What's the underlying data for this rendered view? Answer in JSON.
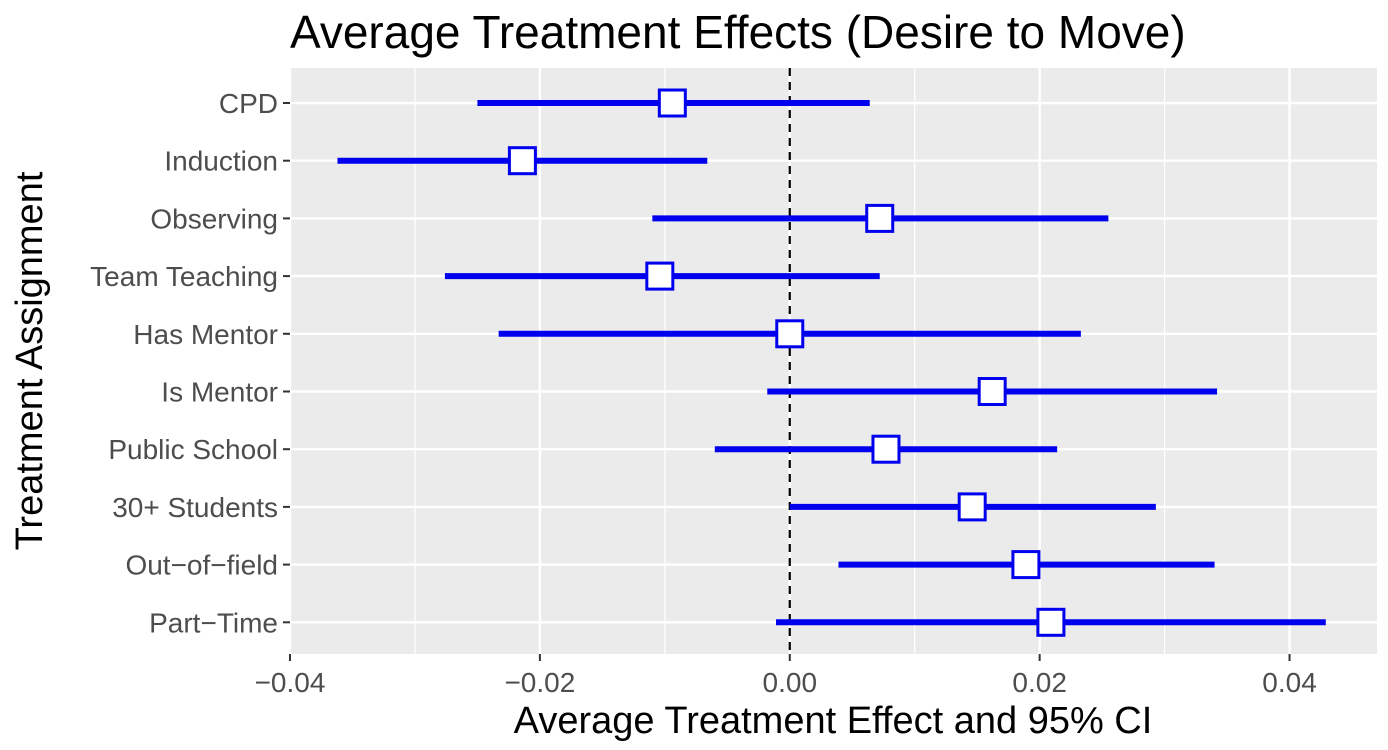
{
  "chart_data": {
    "type": "forest",
    "title": "Average Treatment Effects (Desire to Move)",
    "xlabel": "Average Treatment Effect and 95% CI",
    "ylabel": "Treatment Assignment",
    "xlim": [
      -0.04,
      0.047
    ],
    "x_ticks": [
      -0.04,
      -0.02,
      0.0,
      0.02,
      0.04
    ],
    "x_tick_labels": [
      "−0.04",
      "−0.02",
      "0.00",
      "0.02",
      "0.04"
    ],
    "reference_line": 0.0,
    "grid": true,
    "colors": {
      "ci_line": "#0000ee",
      "marker_fill": "#ffffff",
      "marker_stroke": "#0000ee",
      "panel_bg": "#ebebeb",
      "grid": "#ffffff",
      "reference": "#000000"
    },
    "categories": [
      "CPD",
      "Induction",
      "Observing",
      "Team Teaching",
      "Has Mentor",
      "Is Mentor",
      "Public School",
      "30+ Students",
      "Out−of−field",
      "Part−Time"
    ],
    "estimates": [
      -0.0094,
      -0.0214,
      0.0072,
      -0.0104,
      0.0,
      0.0162,
      0.0077,
      0.0146,
      0.0189,
      0.0209
    ],
    "ci_lower": [
      -0.025,
      -0.0362,
      -0.011,
      -0.0276,
      -0.0233,
      -0.0018,
      -0.006,
      0.0,
      0.0039,
      -0.0011
    ],
    "ci_upper": [
      0.0064,
      -0.0066,
      0.0255,
      0.0072,
      0.0233,
      0.0342,
      0.0214,
      0.0293,
      0.034,
      0.0429
    ]
  }
}
